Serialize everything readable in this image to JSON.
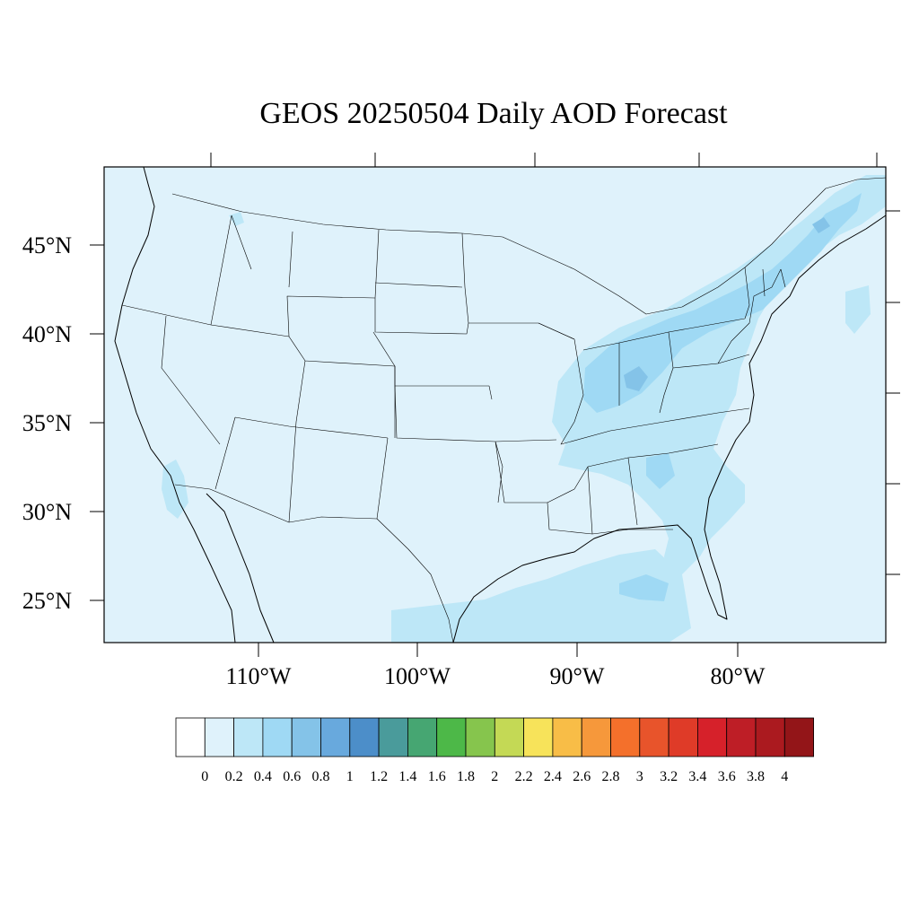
{
  "title": "GEOS 20250504 Daily AOD Forecast",
  "latitude_labels": [
    "45°N",
    "40°N",
    "35°N",
    "30°N",
    "25°N"
  ],
  "longitude_labels": [
    "110°W",
    "100°W",
    "90°W",
    "80°W"
  ],
  "colorbar": {
    "labels": [
      "0",
      "0.2",
      "0.4",
      "0.6",
      "0.8",
      "1",
      "1.2",
      "1.4",
      "1.6",
      "1.8",
      "2",
      "2.2",
      "2.4",
      "2.6",
      "2.8",
      "3",
      "3.2",
      "3.4",
      "3.6",
      "3.8",
      "4"
    ],
    "colors": [
      "#ffffff",
      "#dff2fb",
      "#bde7f7",
      "#9fd9f4",
      "#84c3e8",
      "#68a9dd",
      "#4c8ec9",
      "#4a9b9b",
      "#46a672",
      "#4db848",
      "#86c54d",
      "#c4d955",
      "#f7e35a",
      "#f8bd47",
      "#f6983b",
      "#f4702b",
      "#e8542b",
      "#df3b28",
      "#d6212a",
      "#be1e26",
      "#ab1a1f",
      "#931518"
    ]
  },
  "map": {
    "background_color": "#dff2fb",
    "plume_colors": [
      "#bde7f7",
      "#9fd9f4",
      "#84c3e8"
    ]
  }
}
